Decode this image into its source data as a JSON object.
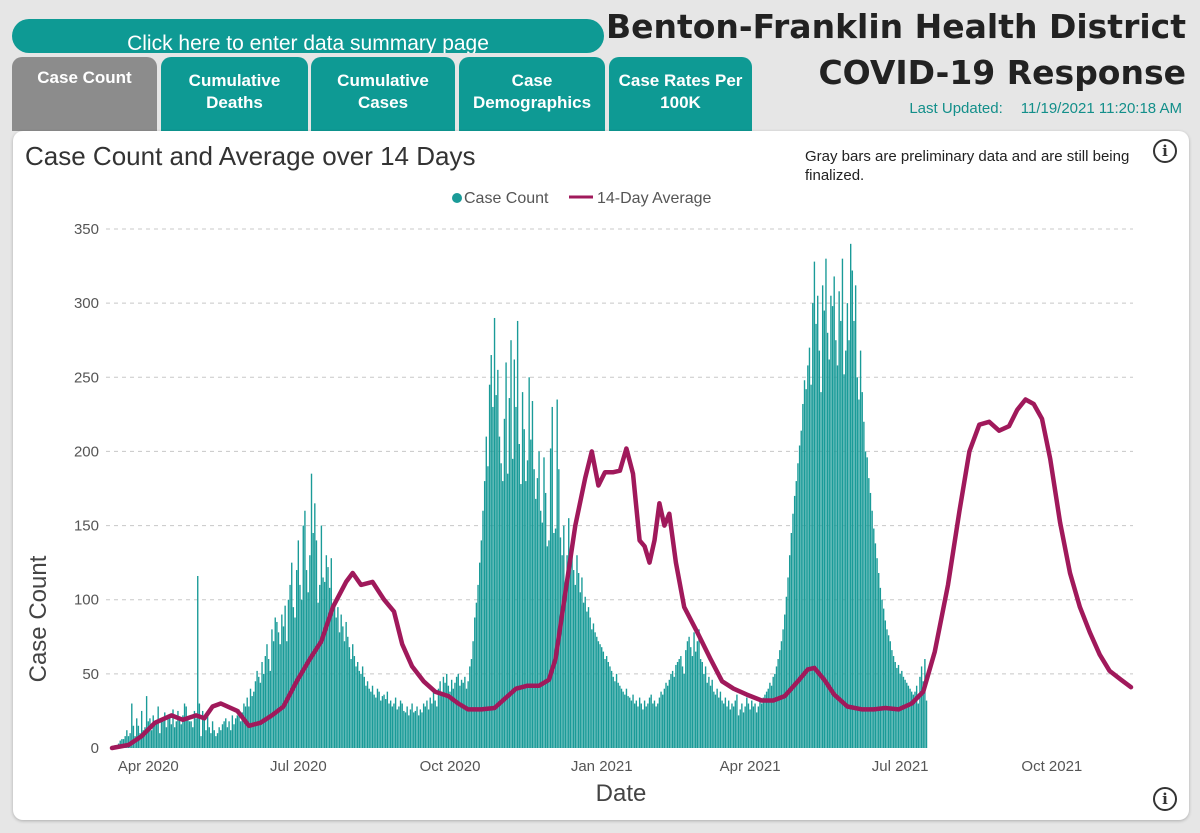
{
  "summary_button": "Click here to enter data summary page",
  "tabs": [
    {
      "label": "Case Count",
      "active": true
    },
    {
      "label": "Cumulative Deaths",
      "active": false
    },
    {
      "label": "Cumulative Cases",
      "active": false
    },
    {
      "label": "Case Demographics",
      "active": false
    },
    {
      "label": "Case Rates Per 100K",
      "active": false
    }
  ],
  "header": {
    "title_line1": "Benton-Franklin Health District",
    "title_line2": "COVID-19 Response",
    "updated_label": "Last Updated:",
    "updated_value": "11/19/2021 11:20:18 AM"
  },
  "note": "Gray bars are preliminary data and are still being finalized.",
  "icons": {
    "info": "info-icon"
  },
  "colors": {
    "accent": "#0e9a94",
    "bar": "#1a9b98",
    "average": "#a0195b",
    "preliminary": "#a3a3a3"
  },
  "chart_data": {
    "type": "bar",
    "title": "Case Count and Average over 14 Days",
    "xlabel": "Date",
    "ylabel": "Case Count",
    "ylim": [
      0,
      350
    ],
    "yticks": [
      0,
      50,
      100,
      150,
      200,
      250,
      300,
      350
    ],
    "grid": true,
    "legend_position": "top-center",
    "x_range": [
      "2020-03-10",
      "2021-11-18"
    ],
    "xticks": [
      {
        "date": "2020-04-01",
        "label": "Apr 2020"
      },
      {
        "date": "2020-07-01",
        "label": "Jul 2020"
      },
      {
        "date": "2020-10-01",
        "label": "Oct 2020"
      },
      {
        "date": "2021-01-01",
        "label": "Jan 2021"
      },
      {
        "date": "2021-04-01",
        "label": "Apr 2021"
      },
      {
        "date": "2021-07-01",
        "label": "Jul 2021"
      },
      {
        "date": "2021-10-01",
        "label": "Oct 2021"
      }
    ],
    "series": [
      {
        "name": "Case Count",
        "kind": "bar",
        "start_date": "2020-03-10",
        "preliminary_from": "2021-11-14",
        "values": [
          0,
          1,
          2,
          2,
          3,
          5,
          6,
          6,
          8,
          12,
          8,
          10,
          30,
          15,
          8,
          20,
          15,
          10,
          25,
          12,
          14,
          35,
          18,
          20,
          12,
          22,
          16,
          18,
          28,
          10,
          20,
          18,
          24,
          14,
          20,
          22,
          16,
          26,
          14,
          18,
          25,
          20,
          16,
          22,
          30,
          28,
          20,
          18,
          18,
          14,
          25,
          20,
          116,
          30,
          8,
          25,
          20,
          12,
          22,
          14,
          10,
          18,
          12,
          8,
          10,
          14,
          12,
          16,
          18,
          20,
          14,
          18,
          12,
          22,
          16,
          20,
          22,
          26,
          18,
          24,
          30,
          28,
          34,
          28,
          40,
          35,
          38,
          45,
          52,
          48,
          44,
          58,
          50,
          62,
          70,
          60,
          52,
          80,
          72,
          88,
          85,
          78,
          70,
          90,
          82,
          96,
          72,
          100,
          110,
          125,
          95,
          88,
          120,
          140,
          110,
          100,
          150,
          160,
          120,
          105,
          130,
          185,
          145,
          165,
          140,
          98,
          110,
          150,
          115,
          112,
          130,
          122,
          108,
          128,
          96,
          100,
          88,
          95,
          78,
          90,
          82,
          72,
          85,
          75,
          68,
          60,
          70,
          62,
          55,
          58,
          52,
          50,
          55,
          48,
          42,
          45,
          40,
          38,
          42,
          36,
          34,
          40,
          38,
          32,
          35,
          36,
          33,
          38,
          30,
          32,
          28,
          30,
          34,
          26,
          28,
          32,
          30,
          25,
          24,
          28,
          22,
          26,
          30,
          24,
          25,
          28,
          22,
          26,
          24,
          30,
          28,
          32,
          26,
          34,
          30,
          38,
          32,
          28,
          40,
          45,
          36,
          48,
          44,
          50,
          42,
          38,
          46,
          40,
          44,
          48,
          50,
          42,
          46,
          44,
          48,
          40,
          45,
          55,
          60,
          72,
          88,
          98,
          110,
          125,
          140,
          160,
          180,
          210,
          190,
          245,
          265,
          230,
          290,
          238,
          255,
          210,
          192,
          180,
          222,
          260,
          185,
          236,
          275,
          195,
          262,
          230,
          288,
          205,
          178,
          240,
          215,
          180,
          194,
          250,
          208,
          234,
          188,
          168,
          182,
          200,
          160,
          152,
          196,
          172,
          136,
          140,
          202,
          230,
          145,
          148,
          235,
          188,
          142,
          130,
          150,
          105,
          130,
          155,
          128,
          132,
          120,
          110,
          130,
          118,
          105,
          115,
          98,
          102,
          92,
          95,
          88,
          80,
          84,
          78,
          75,
          72,
          70,
          68,
          65,
          60,
          62,
          58,
          55,
          52,
          48,
          45,
          50,
          44,
          42,
          40,
          38,
          36,
          40,
          35,
          34,
          32,
          36,
          30,
          32,
          28,
          34,
          30,
          26,
          32,
          28,
          30,
          34,
          36,
          30,
          32,
          28,
          30,
          34,
          38,
          36,
          40,
          44,
          42,
          46,
          50,
          52,
          48,
          56,
          58,
          60,
          62,
          55,
          50,
          66,
          72,
          75,
          68,
          62,
          78,
          65,
          72,
          80,
          60,
          58,
          50,
          55,
          44,
          48,
          42,
          46,
          38,
          36,
          40,
          34,
          38,
          32,
          30,
          34,
          28,
          32,
          26,
          30,
          28,
          32,
          36,
          22,
          26,
          30,
          24,
          28,
          34,
          30,
          26,
          32,
          28,
          30,
          24,
          28,
          32,
          30,
          34,
          36,
          38,
          40,
          44,
          42,
          48,
          50,
          55,
          60,
          66,
          72,
          80,
          90,
          102,
          115,
          130,
          145,
          158,
          170,
          180,
          192,
          204,
          214,
          232,
          248,
          242,
          258,
          270,
          245,
          300,
          328,
          286,
          305,
          268,
          240,
          312,
          295,
          330,
          280,
          262,
          305,
          298,
          318,
          275,
          258,
          308,
          288,
          330,
          252,
          268,
          300,
          275,
          340,
          322,
          288,
          312,
          250,
          235,
          268,
          240,
          220,
          200,
          196,
          182,
          172,
          160,
          148,
          138,
          128,
          118,
          108,
          100,
          94,
          86,
          80,
          76,
          72,
          66,
          62,
          58,
          54,
          56,
          50,
          52,
          48,
          46,
          44,
          42,
          40,
          38,
          36,
          38,
          42,
          30,
          48,
          55,
          45,
          60,
          32
        ]
      },
      {
        "name": "14-Day Average",
        "kind": "line",
        "points": [
          [
            "2020-03-10",
            0
          ],
          [
            "2020-03-20",
            2
          ],
          [
            "2020-03-28",
            8
          ],
          [
            "2020-04-05",
            17
          ],
          [
            "2020-04-15",
            22
          ],
          [
            "2020-04-22",
            19
          ],
          [
            "2020-04-30",
            22
          ],
          [
            "2020-05-05",
            20
          ],
          [
            "2020-05-10",
            28
          ],
          [
            "2020-05-15",
            30
          ],
          [
            "2020-05-25",
            25
          ],
          [
            "2020-06-01",
            15
          ],
          [
            "2020-06-08",
            17
          ],
          [
            "2020-06-15",
            22
          ],
          [
            "2020-06-22",
            28
          ],
          [
            "2020-06-30",
            45
          ],
          [
            "2020-07-08",
            60
          ],
          [
            "2020-07-15",
            72
          ],
          [
            "2020-07-22",
            95
          ],
          [
            "2020-07-30",
            112
          ],
          [
            "2020-08-03",
            118
          ],
          [
            "2020-08-08",
            110
          ],
          [
            "2020-08-15",
            112
          ],
          [
            "2020-08-22",
            100
          ],
          [
            "2020-08-28",
            92
          ],
          [
            "2020-09-02",
            70
          ],
          [
            "2020-09-08",
            55
          ],
          [
            "2020-09-15",
            45
          ],
          [
            "2020-09-22",
            38
          ],
          [
            "2020-09-30",
            35
          ],
          [
            "2020-10-06",
            30
          ],
          [
            "2020-10-12",
            26
          ],
          [
            "2020-10-20",
            26
          ],
          [
            "2020-10-28",
            27
          ],
          [
            "2020-11-04",
            34
          ],
          [
            "2020-11-10",
            40
          ],
          [
            "2020-11-17",
            42
          ],
          [
            "2020-11-24",
            42
          ],
          [
            "2020-11-30",
            46
          ],
          [
            "2020-12-04",
            60
          ],
          [
            "2020-12-10",
            105
          ],
          [
            "2020-12-16",
            150
          ],
          [
            "2020-12-22",
            182
          ],
          [
            "2020-12-26",
            200
          ],
          [
            "2020-12-30",
            177
          ],
          [
            "2021-01-03",
            186
          ],
          [
            "2021-01-08",
            186
          ],
          [
            "2021-01-12",
            187
          ],
          [
            "2021-01-16",
            202
          ],
          [
            "2021-01-20",
            185
          ],
          [
            "2021-01-24",
            140
          ],
          [
            "2021-01-27",
            136
          ],
          [
            "2021-01-30",
            125
          ],
          [
            "2021-02-02",
            140
          ],
          [
            "2021-02-05",
            165
          ],
          [
            "2021-02-08",
            150
          ],
          [
            "2021-02-11",
            158
          ],
          [
            "2021-02-15",
            125
          ],
          [
            "2021-02-20",
            95
          ],
          [
            "2021-02-28",
            78
          ],
          [
            "2021-03-08",
            60
          ],
          [
            "2021-03-15",
            45
          ],
          [
            "2021-03-22",
            40
          ],
          [
            "2021-03-30",
            36
          ],
          [
            "2021-04-08",
            32
          ],
          [
            "2021-04-15",
            32
          ],
          [
            "2021-04-22",
            35
          ],
          [
            "2021-04-30",
            45
          ],
          [
            "2021-05-06",
            53
          ],
          [
            "2021-05-10",
            54
          ],
          [
            "2021-05-16",
            46
          ],
          [
            "2021-05-22",
            36
          ],
          [
            "2021-05-30",
            28
          ],
          [
            "2021-06-08",
            26
          ],
          [
            "2021-06-15",
            26
          ],
          [
            "2021-06-22",
            27
          ],
          [
            "2021-06-30",
            26
          ],
          [
            "2021-07-08",
            30
          ],
          [
            "2021-07-15",
            38
          ],
          [
            "2021-07-22",
            65
          ],
          [
            "2021-07-30",
            110
          ],
          [
            "2021-08-06",
            160
          ],
          [
            "2021-08-12",
            200
          ],
          [
            "2021-08-18",
            218
          ],
          [
            "2021-08-24",
            220
          ],
          [
            "2021-08-30",
            214
          ],
          [
            "2021-09-05",
            217
          ],
          [
            "2021-09-10",
            228
          ],
          [
            "2021-09-15",
            235
          ],
          [
            "2021-09-20",
            232
          ],
          [
            "2021-09-25",
            222
          ],
          [
            "2021-09-30",
            195
          ],
          [
            "2021-10-06",
            152
          ],
          [
            "2021-10-12",
            118
          ],
          [
            "2021-10-18",
            95
          ],
          [
            "2021-10-24",
            78
          ],
          [
            "2021-10-30",
            63
          ],
          [
            "2021-11-05",
            52
          ],
          [
            "2021-11-12",
            46
          ],
          [
            "2021-11-18",
            41
          ]
        ]
      }
    ]
  }
}
